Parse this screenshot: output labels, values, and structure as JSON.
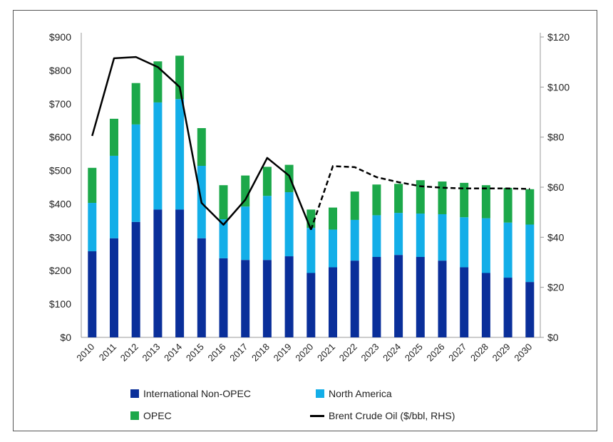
{
  "chart_data": {
    "type": "bar",
    "stacked": true,
    "categories": [
      "2010",
      "2011",
      "2012",
      "2013",
      "2014",
      "2015",
      "2016",
      "2017",
      "2018",
      "2019",
      "2020",
      "2021",
      "2022",
      "2023",
      "2024",
      "2025",
      "2026",
      "2027",
      "2028",
      "2029",
      "2030"
    ],
    "series": [
      {
        "name": "International Non-OPEC",
        "color": "#0a2f9a",
        "axis": "left",
        "values": [
          258,
          297,
          346,
          383,
          383,
          297,
          237,
          232,
          232,
          243,
          193,
          210,
          230,
          241,
          247,
          241,
          230,
          210,
          193,
          179,
          166
        ]
      },
      {
        "name": "North America",
        "color": "#13aee8",
        "axis": "left",
        "values": [
          145,
          247,
          292,
          321,
          331,
          217,
          117,
          160,
          192,
          192,
          135,
          113,
          122,
          125,
          126,
          130,
          139,
          150,
          164,
          165,
          172
        ]
      },
      {
        "name": "OPEC",
        "color": "#1ca84a",
        "axis": "left",
        "values": [
          105,
          111,
          124,
          123,
          130,
          113,
          102,
          93,
          87,
          82,
          55,
          66,
          85,
          92,
          87,
          100,
          98,
          103,
          99,
          104,
          106
        ]
      },
      {
        "name": "Brent Crude Oil ($/bbl, RHS)",
        "color": "#000000",
        "axis": "right",
        "type": "line",
        "values": [
          80.5,
          111.5,
          112,
          108,
          100,
          53.7,
          45,
          55,
          71.7,
          64.6,
          43,
          68.4,
          68,
          64,
          62,
          60.4,
          59.8,
          59.5,
          59.5,
          59.5,
          59.3
        ],
        "dashed_from": "2020"
      }
    ],
    "left_axis": {
      "ylim": [
        0,
        900
      ],
      "ticks": [
        "$0",
        "$100",
        "$200",
        "$300",
        "$400",
        "$500",
        "$600",
        "$700",
        "$800",
        "$900"
      ]
    },
    "right_axis": {
      "ylim": [
        0,
        120
      ],
      "ticks": [
        "$0",
        "$20",
        "$40",
        "$60",
        "$80",
        "$100",
        "$120"
      ]
    },
    "legend": {
      "placement": "bottom",
      "labels": [
        "International Non-OPEC",
        "North America",
        "OPEC",
        "Brent Crude Oil ($/bbl, RHS)"
      ]
    },
    "title": "",
    "xlabel": "",
    "ylabel": ""
  }
}
